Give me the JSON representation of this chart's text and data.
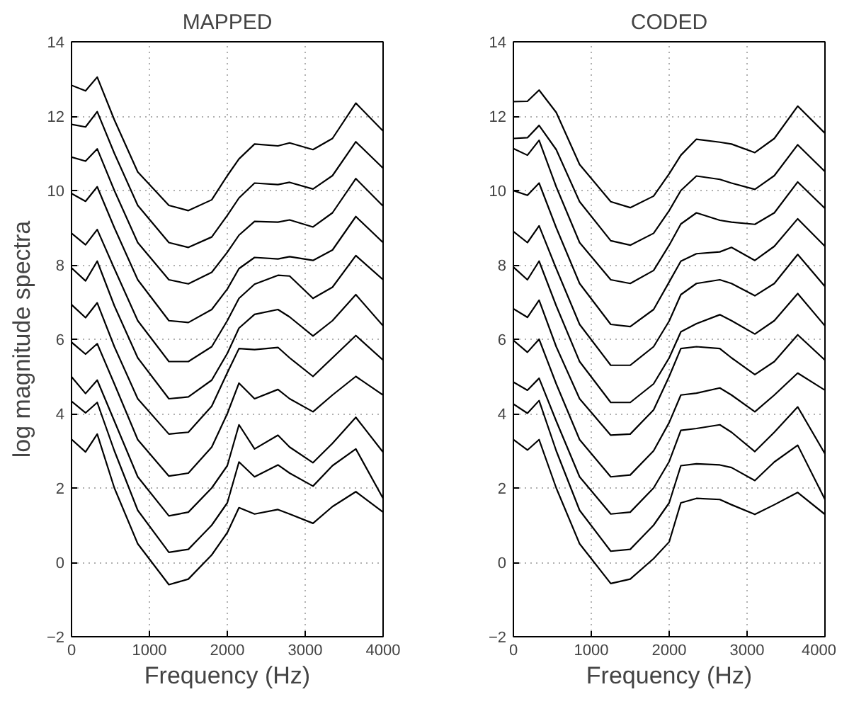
{
  "chart_data": [
    {
      "type": "line",
      "title": "MAPPED",
      "xlabel": "Frequency (Hz)",
      "ylabel": "log magnitude spectra",
      "xlim": [
        0,
        4000
      ],
      "ylim": [
        -2,
        14
      ],
      "xticks": [
        0,
        1000,
        2000,
        3000,
        4000
      ],
      "yticks": [
        -2,
        0,
        2,
        4,
        6,
        8,
        10,
        12,
        14
      ],
      "grid": true,
      "x": [
        0,
        180,
        330,
        550,
        850,
        1250,
        1500,
        1800,
        2000,
        2150,
        2350,
        2650,
        2800,
        3100,
        3350,
        3650,
        4000
      ],
      "series": [
        {
          "color": "#000000",
          "values": [
            12.83,
            12.68,
            13.05,
            11.9,
            10.5,
            9.6,
            9.46,
            9.75,
            10.4,
            10.85,
            11.25,
            11.2,
            11.28,
            11.1,
            11.4,
            12.35,
            11.6
          ]
        },
        {
          "color": "#000000",
          "values": [
            11.78,
            11.71,
            12.12,
            11.0,
            9.6,
            8.6,
            8.47,
            8.75,
            9.33,
            9.8,
            10.2,
            10.16,
            10.22,
            10.04,
            10.4,
            11.31,
            10.6
          ]
        },
        {
          "color": "#000000",
          "values": [
            10.9,
            10.79,
            11.12,
            10.0,
            8.6,
            7.6,
            7.49,
            7.8,
            8.34,
            8.8,
            9.17,
            9.15,
            9.21,
            9.02,
            9.4,
            10.32,
            9.58
          ]
        },
        {
          "color": "#000000",
          "values": [
            9.92,
            9.71,
            10.1,
            9.0,
            7.6,
            6.5,
            6.45,
            6.8,
            7.35,
            7.9,
            8.2,
            8.16,
            8.22,
            8.12,
            8.4,
            9.3,
            8.6
          ]
        },
        {
          "color": "#000000",
          "values": [
            8.85,
            8.54,
            8.95,
            7.9,
            6.5,
            5.4,
            5.4,
            5.8,
            6.5,
            7.1,
            7.48,
            7.72,
            7.7,
            7.1,
            7.4,
            8.25,
            7.6
          ]
        },
        {
          "color": "#000000",
          "values": [
            7.92,
            7.57,
            8.1,
            6.9,
            5.5,
            4.4,
            4.45,
            4.9,
            5.62,
            6.3,
            6.67,
            6.8,
            6.6,
            6.09,
            6.5,
            7.2,
            6.36
          ]
        },
        {
          "color": "#000000",
          "values": [
            6.93,
            6.58,
            6.98,
            5.8,
            4.4,
            3.45,
            3.5,
            4.2,
            5.1,
            5.75,
            5.72,
            5.78,
            5.5,
            5.0,
            5.5,
            6.1,
            5.44
          ]
        },
        {
          "color": "#000000",
          "values": [
            5.92,
            5.6,
            5.88,
            4.8,
            3.3,
            2.32,
            2.4,
            3.1,
            4.0,
            4.82,
            4.4,
            4.65,
            4.4,
            4.05,
            4.5,
            5.0,
            4.5
          ]
        },
        {
          "color": "#000000",
          "values": [
            4.99,
            4.54,
            4.9,
            3.8,
            2.3,
            1.25,
            1.35,
            2.0,
            2.6,
            3.7,
            3.05,
            3.42,
            3.1,
            2.68,
            3.2,
            3.9,
            2.96
          ]
        },
        {
          "color": "#000000",
          "values": [
            4.33,
            4.02,
            4.3,
            3.0,
            1.4,
            0.27,
            0.35,
            1.0,
            1.6,
            2.7,
            2.3,
            2.62,
            2.4,
            2.05,
            2.6,
            3.05,
            1.72
          ]
        },
        {
          "color": "#000000",
          "values": [
            3.31,
            2.97,
            3.45,
            2.0,
            0.5,
            -0.6,
            -0.45,
            0.2,
            0.8,
            1.47,
            1.3,
            1.42,
            1.3,
            1.05,
            1.5,
            1.9,
            1.35
          ]
        }
      ]
    },
    {
      "type": "line",
      "title": "CODED",
      "xlabel": "Frequency (Hz)",
      "xlim": [
        0,
        4000
      ],
      "ylim": [
        -2,
        14
      ],
      "xticks": [
        0,
        1000,
        2000,
        3000,
        4000
      ],
      "yticks": [
        -2,
        0,
        2,
        4,
        6,
        8,
        10,
        12,
        14
      ],
      "grid": true,
      "x": [
        0,
        180,
        330,
        550,
        850,
        1250,
        1500,
        1800,
        2000,
        2150,
        2350,
        2650,
        2800,
        3100,
        3350,
        3650,
        4000
      ],
      "series": [
        {
          "color": "#000000",
          "values": [
            12.39,
            12.4,
            12.7,
            12.1,
            10.7,
            9.7,
            9.54,
            9.85,
            10.45,
            10.95,
            11.38,
            11.3,
            11.25,
            11.02,
            11.4,
            12.27,
            11.54
          ]
        },
        {
          "color": "#000000",
          "values": [
            11.4,
            11.42,
            11.75,
            11.1,
            9.7,
            8.65,
            8.53,
            8.85,
            9.46,
            10.0,
            10.39,
            10.3,
            10.2,
            10.03,
            10.4,
            11.23,
            10.51
          ]
        },
        {
          "color": "#000000",
          "values": [
            11.13,
            10.95,
            11.35,
            10.1,
            8.6,
            7.6,
            7.5,
            7.85,
            8.53,
            9.1,
            9.4,
            9.2,
            9.15,
            9.09,
            9.4,
            10.23,
            9.52
          ]
        },
        {
          "color": "#000000",
          "values": [
            10.0,
            9.87,
            10.2,
            9.0,
            7.5,
            6.4,
            6.34,
            6.8,
            7.54,
            8.1,
            8.3,
            8.35,
            8.47,
            8.12,
            8.5,
            9.24,
            8.5
          ]
        },
        {
          "color": "#000000",
          "values": [
            8.9,
            8.6,
            9.05,
            7.9,
            6.4,
            5.3,
            5.3,
            5.8,
            6.49,
            7.2,
            7.5,
            7.6,
            7.5,
            7.17,
            7.5,
            8.28,
            7.42
          ]
        },
        {
          "color": "#000000",
          "values": [
            7.94,
            7.6,
            8.1,
            6.9,
            5.4,
            4.3,
            4.3,
            4.8,
            5.5,
            6.2,
            6.42,
            6.66,
            6.5,
            6.14,
            6.5,
            7.23,
            6.36
          ]
        },
        {
          "color": "#000000",
          "values": [
            6.82,
            6.59,
            7.05,
            5.8,
            4.4,
            3.42,
            3.45,
            4.1,
            5.0,
            5.75,
            5.8,
            5.75,
            5.5,
            5.05,
            5.4,
            6.12,
            5.44
          ]
        },
        {
          "color": "#000000",
          "values": [
            5.97,
            5.65,
            6.0,
            4.8,
            3.3,
            2.3,
            2.35,
            3.0,
            3.76,
            4.5,
            4.55,
            4.69,
            4.5,
            4.05,
            4.5,
            5.09,
            4.63
          ]
        },
        {
          "color": "#000000",
          "values": [
            4.85,
            4.63,
            4.95,
            3.8,
            2.3,
            1.3,
            1.35,
            2.0,
            2.71,
            3.55,
            3.6,
            3.7,
            3.5,
            2.98,
            3.5,
            4.18,
            2.92
          ]
        },
        {
          "color": "#000000",
          "values": [
            4.26,
            4.01,
            4.35,
            3.0,
            1.4,
            0.3,
            0.35,
            1.0,
            1.6,
            2.6,
            2.65,
            2.62,
            2.55,
            2.2,
            2.7,
            3.15,
            1.69
          ]
        },
        {
          "color": "#000000",
          "values": [
            3.3,
            3.02,
            3.3,
            2.0,
            0.5,
            -0.57,
            -0.45,
            0.1,
            0.55,
            1.6,
            1.72,
            1.69,
            1.55,
            1.29,
            1.55,
            1.88,
            1.29
          ]
        }
      ]
    }
  ]
}
